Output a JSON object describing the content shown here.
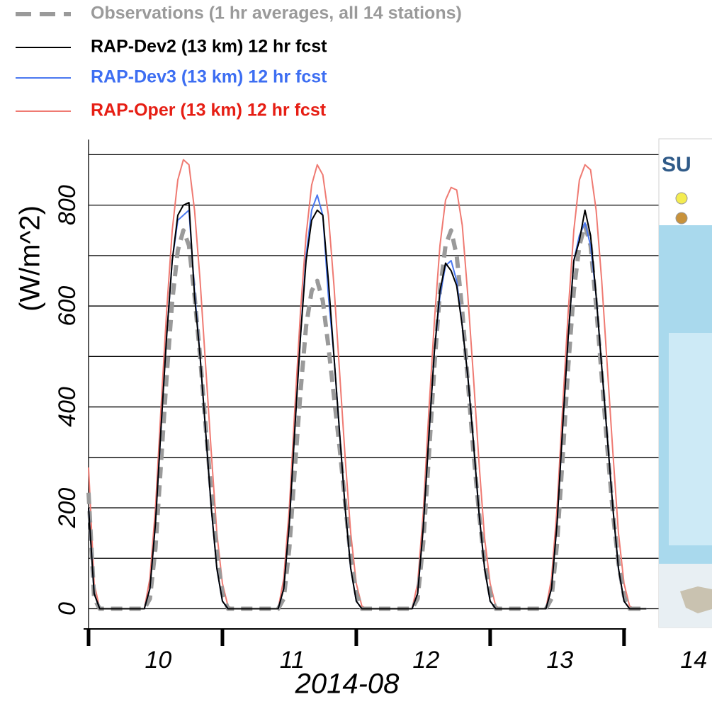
{
  "chart_data": {
    "type": "line",
    "y_label": "(W/m^2)",
    "x_label": "2014-08",
    "legend": "top-left",
    "x": [
      0,
      1,
      2,
      3,
      4,
      5,
      6,
      7,
      8,
      9,
      10,
      11,
      12,
      13,
      14,
      15,
      16,
      17,
      18,
      19,
      20,
      21,
      22,
      23,
      24,
      25,
      26,
      27,
      28,
      29,
      30,
      31,
      32,
      33,
      34,
      35,
      36,
      37,
      38,
      39,
      40,
      41,
      42,
      43,
      44,
      45,
      46,
      47,
      48,
      49,
      50,
      51,
      52,
      53,
      54,
      55,
      56,
      57,
      58,
      59,
      60,
      61,
      62,
      63,
      64,
      65,
      66,
      67,
      68,
      69,
      70,
      71,
      72,
      73,
      74,
      75,
      76,
      77,
      78,
      79,
      80,
      81,
      82,
      83,
      84,
      85,
      86,
      87,
      88,
      89,
      90,
      91,
      92,
      93,
      94,
      95,
      96,
      97,
      98,
      99,
      100
    ],
    "xlim": [
      0,
      102.5
    ],
    "xticks": [
      {
        "value": 12.5,
        "label": "10"
      },
      {
        "value": 36.5,
        "label": "11"
      },
      {
        "value": 60.5,
        "label": "12"
      },
      {
        "value": 84.5,
        "label": "13"
      },
      {
        "value": 108.5,
        "label": "14"
      }
    ],
    "x_tick_marks": [
      0,
      24,
      48,
      72,
      96
    ],
    "ylim": [
      -40,
      930
    ],
    "yticks": [
      0,
      200,
      400,
      600,
      800
    ],
    "ygrid": [
      0,
      100,
      200,
      300,
      400,
      500,
      600,
      700,
      800,
      900
    ],
    "series": [
      {
        "name": "Observations (1 hr averages, all 14 stations)",
        "color": "#9a9a9a",
        "label_color": "#9a9a9a",
        "dashed": true,
        "values": [
          230,
          20,
          0,
          0,
          0,
          0,
          0,
          0,
          0,
          0,
          0,
          20,
          120,
          290,
          460,
          610,
          710,
          750,
          720,
          620,
          500,
          360,
          230,
          110,
          30,
          0,
          0,
          0,
          0,
          0,
          0,
          0,
          0,
          0,
          0,
          20,
          120,
          280,
          430,
          560,
          630,
          650,
          610,
          520,
          420,
          320,
          210,
          100,
          30,
          0,
          0,
          0,
          0,
          0,
          0,
          0,
          0,
          0,
          0,
          20,
          130,
          300,
          480,
          630,
          720,
          750,
          700,
          590,
          450,
          310,
          190,
          90,
          30,
          0,
          0,
          0,
          0,
          0,
          0,
          0,
          0,
          0,
          0,
          20,
          130,
          300,
          480,
          630,
          720,
          760,
          720,
          600,
          460,
          320,
          190,
          90,
          25,
          0,
          0,
          0,
          0
        ]
      },
      {
        "name": "RAP-Dev2 (13 km) 12 hr fcst",
        "color": "#000000",
        "label_color": "#000000",
        "dashed": false,
        "values": [
          200,
          30,
          0,
          0,
          0,
          0,
          0,
          0,
          0,
          0,
          0,
          40,
          170,
          360,
          540,
          690,
          780,
          800,
          805,
          620,
          500,
          350,
          200,
          80,
          15,
          0,
          0,
          0,
          0,
          0,
          0,
          0,
          0,
          0,
          0,
          40,
          170,
          360,
          540,
          690,
          770,
          790,
          780,
          650,
          500,
          350,
          200,
          80,
          15,
          0,
          0,
          0,
          0,
          0,
          0,
          0,
          0,
          0,
          0,
          30,
          160,
          340,
          510,
          630,
          685,
          670,
          640,
          560,
          460,
          330,
          190,
          80,
          15,
          0,
          0,
          0,
          0,
          0,
          0,
          0,
          0,
          0,
          0,
          40,
          170,
          360,
          540,
          690,
          730,
          790,
          740,
          620,
          480,
          340,
          200,
          80,
          15,
          0,
          0,
          0,
          0
        ]
      },
      {
        "name": "RAP-Dev3 (13 km) 12 hr fcst",
        "color": "#4a78f0",
        "label_color": "#3d6ef2",
        "dashed": false,
        "values": [
          200,
          30,
          0,
          0,
          0,
          0,
          0,
          0,
          0,
          0,
          0,
          40,
          170,
          360,
          540,
          690,
          770,
          780,
          790,
          630,
          500,
          350,
          200,
          80,
          15,
          0,
          0,
          0,
          0,
          0,
          0,
          0,
          0,
          0,
          0,
          40,
          170,
          360,
          540,
          700,
          790,
          820,
          780,
          620,
          500,
          350,
          200,
          80,
          15,
          0,
          0,
          0,
          0,
          0,
          0,
          0,
          0,
          0,
          0,
          30,
          160,
          340,
          510,
          620,
          680,
          690,
          650,
          560,
          460,
          330,
          190,
          80,
          15,
          0,
          0,
          0,
          0,
          0,
          0,
          0,
          0,
          0,
          0,
          40,
          170,
          360,
          540,
          690,
          740,
          765,
          720,
          620,
          480,
          340,
          200,
          80,
          15,
          0,
          0,
          0,
          0
        ]
      },
      {
        "name": "RAP-Oper (13 km) 12 hr fcst",
        "color": "#ef7a72",
        "label_color": "#e61e14",
        "dashed": false,
        "values": [
          280,
          50,
          0,
          0,
          0,
          0,
          0,
          0,
          0,
          0,
          0,
          60,
          200,
          400,
          590,
          750,
          850,
          890,
          880,
          790,
          650,
          480,
          310,
          150,
          50,
          5,
          0,
          0,
          0,
          0,
          0,
          0,
          0,
          0,
          0,
          60,
          200,
          400,
          590,
          740,
          840,
          880,
          860,
          780,
          640,
          470,
          300,
          150,
          50,
          5,
          0,
          0,
          0,
          0,
          0,
          0,
          0,
          0,
          0,
          50,
          190,
          390,
          570,
          720,
          810,
          835,
          830,
          760,
          620,
          460,
          290,
          140,
          50,
          5,
          0,
          0,
          0,
          0,
          0,
          0,
          0,
          0,
          0,
          60,
          200,
          400,
          590,
          750,
          850,
          880,
          870,
          790,
          650,
          480,
          310,
          150,
          50,
          5,
          0,
          0,
          0
        ]
      }
    ]
  },
  "inset": {
    "label": "SU"
  }
}
